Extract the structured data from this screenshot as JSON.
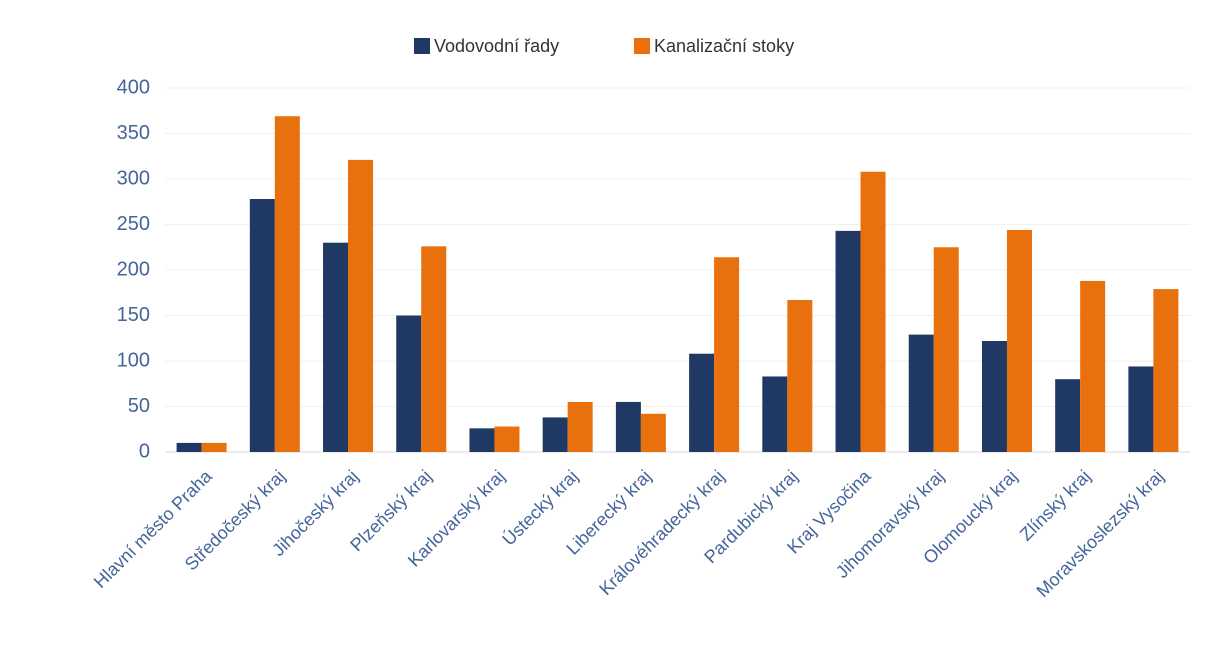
{
  "chart_data": {
    "type": "bar",
    "categories": [
      "Hlavní město Praha",
      "Středočeský kraj",
      "Jihočeský kraj",
      "Plzeňský kraj",
      "Karlovarský kraj",
      "Ústecký kraj",
      "Liberecký kraj",
      "Královéhradecký kraj",
      "Pardubický kraj",
      "Kraj Vysočina",
      "Jihomoravský kraj",
      "Olomoucký kraj",
      "Zlínský kraj",
      "Moravskoslezský kraj"
    ],
    "series": [
      {
        "name": "Vodovodní řady",
        "color": "#1f3864",
        "values": [
          10,
          278,
          230,
          150,
          26,
          38,
          55,
          108,
          83,
          243,
          129,
          122,
          80,
          94
        ]
      },
      {
        "name": "Kanalizační stoky",
        "color": "#e8700d",
        "values": [
          10,
          369,
          321,
          226,
          28,
          55,
          42,
          214,
          167,
          308,
          225,
          244,
          188,
          179
        ]
      }
    ],
    "ylim": [
      0,
      400
    ],
    "yticks": [
      0,
      50,
      100,
      150,
      200,
      250,
      300,
      350,
      400
    ],
    "grid": true,
    "legend": "top"
  }
}
